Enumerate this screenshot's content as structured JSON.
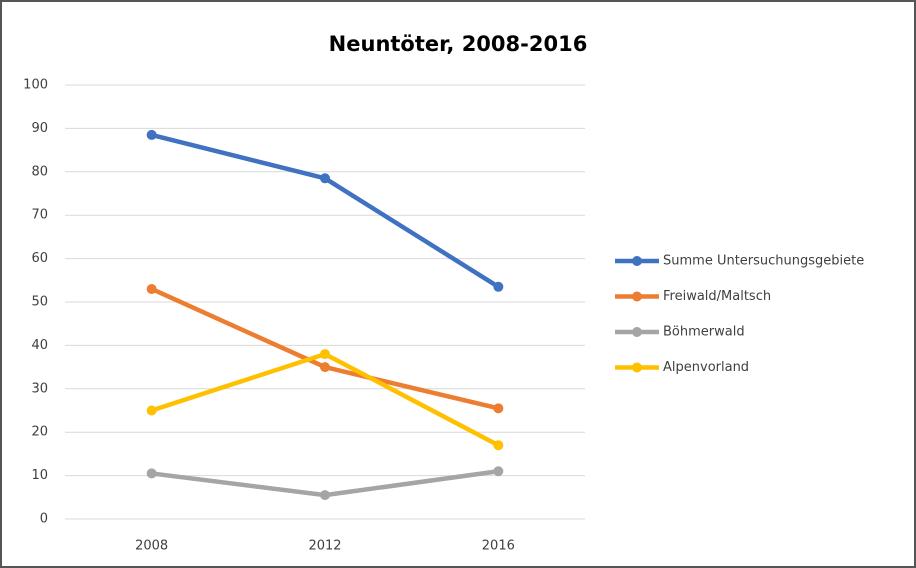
{
  "chart_data": {
    "type": "line",
    "title": "Neuntöter, 2008-2016",
    "categories": [
      "2008",
      "2012",
      "2016"
    ],
    "series": [
      {
        "name": "Summe Untersuchungsgebiete",
        "color": "#3f72c1",
        "values": [
          88.5,
          78.5,
          53.5
        ]
      },
      {
        "name": "Freiwald/Maltsch",
        "color": "#ed7d31",
        "values": [
          53,
          35,
          25.5
        ]
      },
      {
        "name": "Böhmerwald",
        "color": "#a5a5a5",
        "values": [
          10.5,
          5.5,
          11
        ]
      },
      {
        "name": "Alpenvorland",
        "color": "#ffc000",
        "values": [
          25,
          38,
          17
        ]
      }
    ],
    "ylim": [
      0,
      100
    ],
    "yticks": [
      0,
      10,
      20,
      30,
      40,
      50,
      60,
      70,
      80,
      90,
      100
    ],
    "grid": true,
    "legend": "right"
  }
}
